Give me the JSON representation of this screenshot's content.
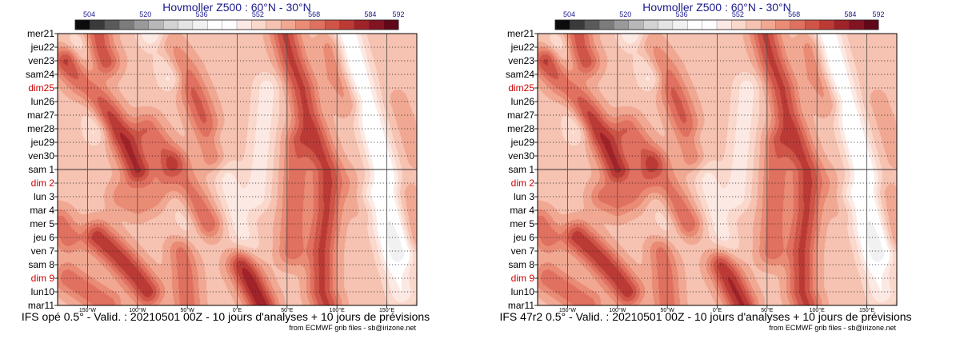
{
  "colorbar": {
    "ticks": [
      "504",
      "520",
      "536",
      "552",
      "568",
      "584",
      "592"
    ],
    "tick_values": [
      504,
      520,
      536,
      552,
      568,
      584,
      592
    ],
    "min": 500,
    "max": 592,
    "colors": [
      "#0c0c0c",
      "#3a3a3a",
      "#5a5a5a",
      "#7c7c7c",
      "#9a9a9a",
      "#b8b8b8",
      "#d3d3d3",
      "#e4e4e4",
      "#f1f1f1",
      "#ffffff",
      "#ffffff",
      "#fde9e3",
      "#fbd8cc",
      "#f6c2b1",
      "#f1a893",
      "#ea8b75",
      "#e07060",
      "#cf5548",
      "#bb3a35",
      "#a0232a",
      "#821421",
      "#60081a"
    ]
  },
  "chart_data": [
    {
      "type": "heatmap",
      "title": "Hovmoller Z500 : 60°N - 30°N",
      "footer": "IFS opé 0.5° - Valid. : 20210501 00Z - 10 jours d'analyses + 10 jours de prévisions",
      "credit": "from ECMWF grib files - sb@irizone.net",
      "x_range_degrees": [
        -180,
        180
      ],
      "x_ticks": [
        "150°W",
        "100°W",
        "50°W",
        "0°E",
        "50°E",
        "100°E",
        "150°E"
      ],
      "x_tick_values": [
        -150,
        -100,
        -50,
        0,
        50,
        100,
        150
      ],
      "y_labels": [
        "mer21",
        "jeu22",
        "ven23",
        "sam24",
        "dim25",
        "lun26",
        "mar27",
        "mer28",
        "jeu29",
        "ven30",
        "sam 1",
        "dim 2",
        "lun 3",
        "mar 4",
        "mer 5",
        "jeu 6",
        "ven 7",
        "sam 8",
        "dim 9",
        "lun10",
        "mar11"
      ],
      "sundays": [
        "dim25",
        "dim 2",
        "dim 9"
      ],
      "analysis_forecast_split": "sam 1",
      "ridges": [
        {
          "path": [
            [
              -140,
              0
            ],
            [
              -138,
              1
            ],
            [
              -132,
              2
            ]
          ],
          "peak_dam": 574
        },
        {
          "path": [
            [
              -170,
              2
            ],
            [
              -150,
              4
            ],
            [
              -130,
              6
            ],
            [
              -112,
              8
            ],
            [
              -100,
              10
            ]
          ],
          "peak_dam": 580
        },
        {
          "path": [
            [
              -70,
              1
            ],
            [
              -52,
              3
            ],
            [
              -40,
              5
            ],
            [
              -30,
              7
            ],
            [
              -22,
              9
            ]
          ],
          "peak_dam": 572
        },
        {
          "path": [
            [
              -90,
              7
            ],
            [
              -80,
              8
            ],
            [
              -70,
              9
            ]
          ],
          "peak_dam": 570
        },
        {
          "path": [
            [
              -115,
              12
            ],
            [
              -100,
              12.5
            ],
            [
              -85,
              12
            ],
            [
              -72,
              11
            ]
          ],
          "peak_dam": 566
        },
        {
          "path": [
            [
              -60,
              10
            ],
            [
              -50,
              11.5
            ],
            [
              -38,
              13
            ],
            [
              -30,
              14
            ]
          ],
          "peak_dam": 572
        },
        {
          "path": [
            [
              -178,
              14
            ],
            [
              -170,
              15
            ]
          ],
          "peak_dam": 570
        },
        {
          "path": [
            [
              -140,
              15
            ],
            [
              -125,
              16
            ],
            [
              -112,
              17
            ],
            [
              -100,
              18
            ],
            [
              -90,
              19
            ]
          ],
          "peak_dam": 578
        },
        {
          "path": [
            [
              -55,
              16
            ],
            [
              -52,
              18
            ],
            [
              -50,
              20
            ]
          ],
          "peak_dam": 570
        },
        {
          "path": [
            [
              -170,
              18
            ],
            [
              -150,
              19
            ],
            [
              -130,
              20
            ]
          ],
          "peak_dam": 570
        },
        {
          "path": [
            [
              5,
              17
            ],
            [
              15,
              18.5
            ],
            [
              25,
              20
            ]
          ],
          "peak_dam": 582
        },
        {
          "path": [
            [
              48,
              0
            ],
            [
              55,
              2
            ],
            [
              65,
              4
            ],
            [
              70,
              6
            ],
            [
              80,
              8
            ],
            [
              90,
              10
            ],
            [
              90,
              13
            ],
            [
              85,
              16
            ],
            [
              85,
              19
            ],
            [
              90,
              20
            ]
          ],
          "peak_dam": 576
        },
        {
          "path": [
            [
              60,
              8
            ],
            [
              58,
              12
            ],
            [
              55,
              16
            ]
          ],
          "peak_dam": 570
        },
        {
          "path": [
            [
              95,
              1
            ],
            [
              100,
              3
            ],
            [
              115,
              5
            ]
          ],
          "peak_dam": 566
        },
        {
          "path": [
            [
              110,
              11
            ],
            [
              120,
              12
            ],
            [
              130,
              13
            ]
          ],
          "peak_dam": 562
        },
        {
          "path": [
            [
              160,
              5
            ],
            [
              170,
              7
            ],
            [
              178,
              9
            ]
          ],
          "peak_dam": 560
        },
        {
          "path": [
            [
              165,
              12
            ],
            [
              172,
              14
            ],
            [
              178,
              15
            ]
          ],
          "peak_dam": 566
        }
      ],
      "troughs": [
        {
          "path": [
            [
              -160,
              1
            ],
            [
              -150,
              4
            ],
            [
              -140,
              7
            ]
          ],
          "min_dam": 546
        },
        {
          "path": [
            [
              -85,
              0
            ],
            [
              -75,
              1
            ],
            [
              -65,
              3
            ]
          ],
          "min_dam": 544
        },
        {
          "path": [
            [
              -60,
              11
            ],
            [
              -45,
              15
            ]
          ],
          "min_dam": 550
        },
        {
          "path": [
            [
              -20,
              8
            ],
            [
              -5,
              12
            ],
            [
              10,
              16
            ]
          ],
          "min_dam": 548
        },
        {
          "path": [
            [
              30,
              4
            ],
            [
              25,
              8
            ],
            [
              20,
              12
            ]
          ],
          "min_dam": 548
        },
        {
          "path": [
            [
              110,
              0
            ],
            [
              125,
              4
            ],
            [
              140,
              8
            ],
            [
              155,
              12
            ],
            [
              165,
              16
            ]
          ],
          "min_dam": 540
        },
        {
          "path": [
            [
              135,
              12
            ],
            [
              150,
              15
            ],
            [
              165,
              19
            ]
          ],
          "min_dam": 546
        }
      ]
    },
    {
      "type": "heatmap",
      "title": "Hovmoller Z500 : 60°N - 30°N",
      "footer": "IFS 47r2 0.5° - Valid. : 20210501 00Z - 10 jours d'analyses + 10 jours de prévisions",
      "credit": "from ECMWF grib files - sb@irizone.net",
      "x_range_degrees": [
        -180,
        180
      ],
      "x_ticks": [
        "150°W",
        "100°W",
        "50°W",
        "0°E",
        "50°E",
        "100°E",
        "150°E"
      ],
      "x_tick_values": [
        -150,
        -100,
        -50,
        0,
        50,
        100,
        150
      ],
      "y_labels": [
        "mer21",
        "jeu22",
        "ven23",
        "sam24",
        "dim25",
        "lun26",
        "mar27",
        "mer28",
        "jeu29",
        "ven30",
        "sam 1",
        "dim 2",
        "lun 3",
        "mar 4",
        "mer 5",
        "jeu 6",
        "ven 7",
        "sam 8",
        "dim 9",
        "lun10",
        "mar11"
      ],
      "sundays": [
        "dim25",
        "dim 2",
        "dim 9"
      ],
      "analysis_forecast_split": "sam 1",
      "ridges": [
        {
          "path": [
            [
              -140,
              0
            ],
            [
              -138,
              1
            ],
            [
              -132,
              2
            ]
          ],
          "peak_dam": 574
        },
        {
          "path": [
            [
              -170,
              2
            ],
            [
              -150,
              4
            ],
            [
              -130,
              6
            ],
            [
              -112,
              8
            ],
            [
              -100,
              10
            ]
          ],
          "peak_dam": 580
        },
        {
          "path": [
            [
              -70,
              1
            ],
            [
              -52,
              3
            ],
            [
              -40,
              5
            ],
            [
              -30,
              7
            ],
            [
              -22,
              9
            ]
          ],
          "peak_dam": 572
        },
        {
          "path": [
            [
              -90,
              7
            ],
            [
              -80,
              8
            ],
            [
              -70,
              9
            ]
          ],
          "peak_dam": 570
        },
        {
          "path": [
            [
              -115,
              12
            ],
            [
              -100,
              12.5
            ],
            [
              -85,
              12
            ],
            [
              -72,
              11
            ]
          ],
          "peak_dam": 568
        },
        {
          "path": [
            [
              -60,
              10
            ],
            [
              -50,
              11.5
            ],
            [
              -38,
              13
            ],
            [
              -30,
              14
            ]
          ],
          "peak_dam": 572
        },
        {
          "path": [
            [
              -178,
              14
            ],
            [
              -170,
              15
            ]
          ],
          "peak_dam": 570
        },
        {
          "path": [
            [
              -140,
              15
            ],
            [
              -125,
              16
            ],
            [
              -112,
              17
            ],
            [
              -100,
              18
            ],
            [
              -90,
              19
            ]
          ],
          "peak_dam": 578
        },
        {
          "path": [
            [
              -55,
              16
            ],
            [
              -52,
              18
            ],
            [
              -50,
              20
            ]
          ],
          "peak_dam": 570
        },
        {
          "path": [
            [
              -170,
              18
            ],
            [
              -150,
              19
            ],
            [
              -130,
              20
            ]
          ],
          "peak_dam": 570
        },
        {
          "path": [
            [
              5,
              17
            ],
            [
              15,
              18.5
            ],
            [
              25,
              20
            ]
          ],
          "peak_dam": 580
        },
        {
          "path": [
            [
              48,
              0
            ],
            [
              55,
              2
            ],
            [
              65,
              4
            ],
            [
              70,
              6
            ],
            [
              80,
              8
            ],
            [
              90,
              10
            ],
            [
              90,
              13
            ],
            [
              85,
              16
            ],
            [
              85,
              19
            ],
            [
              90,
              20
            ]
          ],
          "peak_dam": 576
        },
        {
          "path": [
            [
              60,
              8
            ],
            [
              58,
              12
            ],
            [
              55,
              16
            ]
          ],
          "peak_dam": 570
        },
        {
          "path": [
            [
              95,
              1
            ],
            [
              100,
              3
            ],
            [
              115,
              5
            ]
          ],
          "peak_dam": 566
        },
        {
          "path": [
            [
              110,
              11
            ],
            [
              120,
              12
            ],
            [
              130,
              13
            ]
          ],
          "peak_dam": 562
        },
        {
          "path": [
            [
              160,
              5
            ],
            [
              170,
              7
            ],
            [
              178,
              9
            ]
          ],
          "peak_dam": 560
        },
        {
          "path": [
            [
              165,
              12
            ],
            [
              172,
              14
            ],
            [
              178,
              15
            ]
          ],
          "peak_dam": 566
        }
      ],
      "troughs": [
        {
          "path": [
            [
              -160,
              1
            ],
            [
              -150,
              4
            ],
            [
              -140,
              7
            ]
          ],
          "min_dam": 546
        },
        {
          "path": [
            [
              -85,
              0
            ],
            [
              -75,
              1
            ],
            [
              -65,
              3
            ]
          ],
          "min_dam": 544
        },
        {
          "path": [
            [
              -60,
              11
            ],
            [
              -45,
              15
            ]
          ],
          "min_dam": 550
        },
        {
          "path": [
            [
              -20,
              8
            ],
            [
              -5,
              12
            ],
            [
              10,
              16
            ]
          ],
          "min_dam": 548
        },
        {
          "path": [
            [
              30,
              4
            ],
            [
              25,
              8
            ],
            [
              20,
              12
            ]
          ],
          "min_dam": 548
        },
        {
          "path": [
            [
              110,
              0
            ],
            [
              125,
              4
            ],
            [
              140,
              8
            ],
            [
              155,
              12
            ],
            [
              165,
              16
            ]
          ],
          "min_dam": 540
        },
        {
          "path": [
            [
              135,
              12
            ],
            [
              150,
              15
            ],
            [
              165,
              19
            ]
          ],
          "min_dam": 546
        }
      ]
    }
  ]
}
